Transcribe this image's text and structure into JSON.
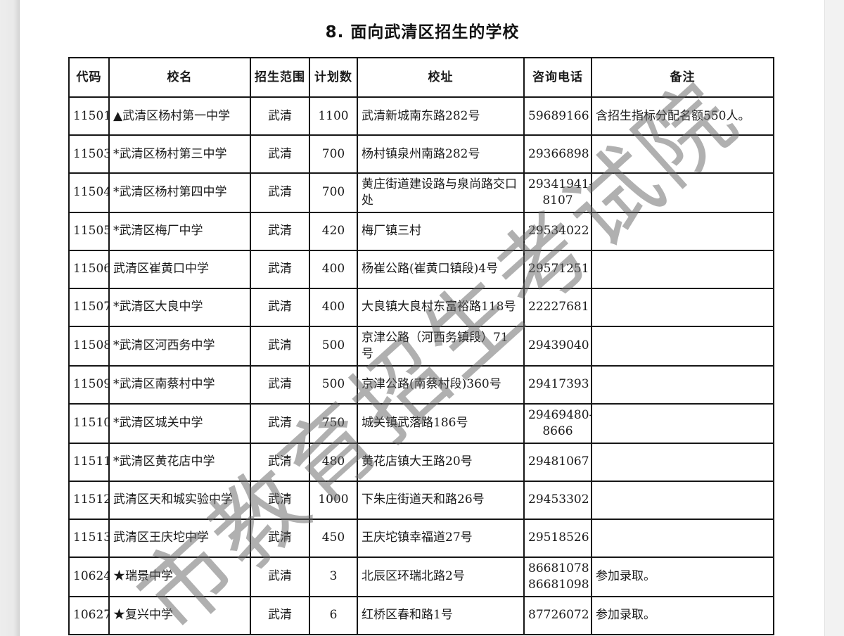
{
  "page": {
    "title": "8. 面向武清区招生的学校",
    "watermark": "市教育招生考试院"
  },
  "table": {
    "headers": [
      "代码",
      "校名",
      "招生范围",
      "计划数",
      "校址",
      "咨询电话",
      "备注"
    ],
    "rows": [
      {
        "code": "11501",
        "name": "▲武清区杨村第一中学",
        "scope": "武清",
        "plan": "1100",
        "address": "武清新城南东路282号",
        "phone": "59689166",
        "remark": "含招生指标分配名额550人。"
      },
      {
        "code": "11503",
        "name": "*武清区杨村第三中学",
        "scope": "武清",
        "plan": "700",
        "address": "杨村镇泉州南路282号",
        "phone": "29366898",
        "remark": ""
      },
      {
        "code": "11504",
        "name": "*武清区杨村第四中学",
        "scope": "武清",
        "plan": "700",
        "address": "黄庄街道建设路与泉尚路交口处",
        "phone": "29341941-\n8107",
        "remark": ""
      },
      {
        "code": "11505",
        "name": "*武清区梅厂中学",
        "scope": "武清",
        "plan": "420",
        "address": "梅厂镇三村",
        "phone": "29534022",
        "remark": ""
      },
      {
        "code": "11506",
        "name": "武清区崔黄口中学",
        "scope": "武清",
        "plan": "400",
        "address": "杨崔公路(崔黄口镇段)4号",
        "phone": "29571251",
        "remark": ""
      },
      {
        "code": "11507",
        "name": "*武清区大良中学",
        "scope": "武清",
        "plan": "400",
        "address": "大良镇大良村东富裕路118号",
        "phone": "22227681",
        "remark": ""
      },
      {
        "code": "11508",
        "name": "*武清区河西务中学",
        "scope": "武清",
        "plan": "500",
        "address": "京津公路（河西务镇段）71号",
        "phone": "29439040",
        "remark": ""
      },
      {
        "code": "11509",
        "name": "*武清区南蔡村中学",
        "scope": "武清",
        "plan": "500",
        "address": "京津公路(南蔡村段)360号",
        "phone": "29417393",
        "remark": ""
      },
      {
        "code": "11510",
        "name": "*武清区城关中学",
        "scope": "武清",
        "plan": "750",
        "address": "城关镇武落路186号",
        "phone": "29469480-\n8666",
        "remark": ""
      },
      {
        "code": "11511",
        "name": "*武清区黄花店中学",
        "scope": "武清",
        "plan": "480",
        "address": "黄花店镇大王路20号",
        "phone": "29481067",
        "remark": ""
      },
      {
        "code": "11512",
        "name": "武清区天和城实验中学",
        "scope": "武清",
        "plan": "1000",
        "address": "下朱庄街道天和路26号",
        "phone": "29453302",
        "remark": ""
      },
      {
        "code": "11513",
        "name": "武清区王庆坨中学",
        "scope": "武清",
        "plan": "450",
        "address": "王庆坨镇幸福道27号",
        "phone": "29518526",
        "remark": ""
      },
      {
        "code": "10624",
        "name": "★瑞景中学",
        "scope": "武清",
        "plan": "3",
        "address": "北辰区环瑞北路2号",
        "phone": "86681078\n86681098",
        "remark": "参加录取。"
      },
      {
        "code": "10627",
        "name": "★复兴中学",
        "scope": "武清",
        "plan": "6",
        "address": "红桥区春和路1号",
        "phone": "87726072",
        "remark": "参加录取。"
      }
    ]
  }
}
